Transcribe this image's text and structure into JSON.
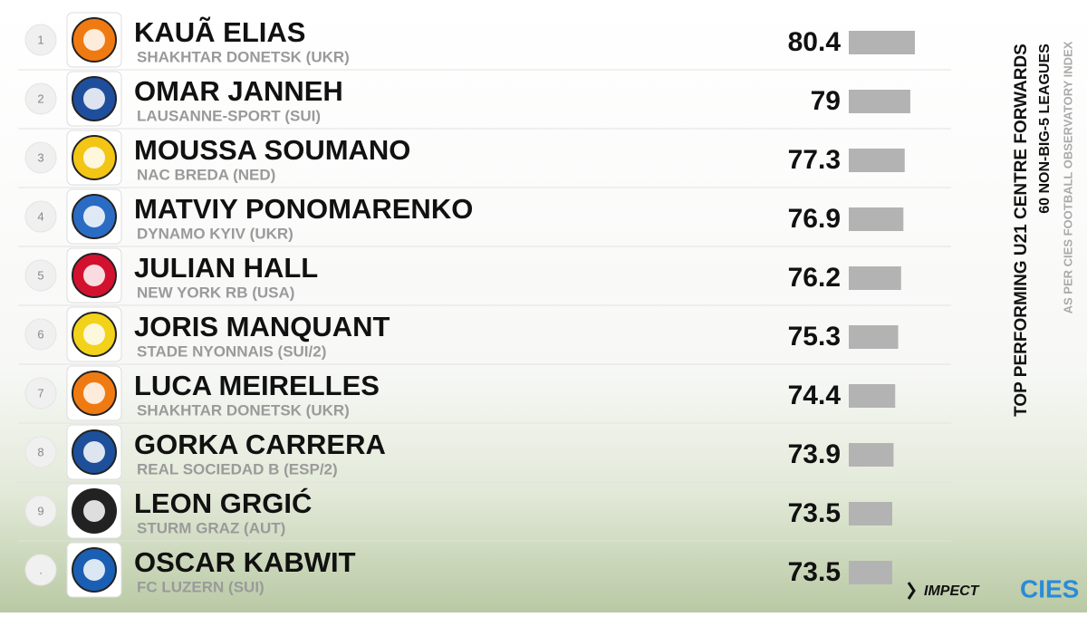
{
  "header": {
    "title": "TOP PERFORMING U21 CENTRE FORWARDS",
    "subtitle": "60 NON-BIG-5 LEAGUES",
    "source": "AS PER CIES FOOTBALL OBSERVATORY INDEX"
  },
  "footer": {
    "brand_1": "IMPECT",
    "brand_2": "CIES"
  },
  "rows": [
    {
      "rank": "1",
      "name": "KAUÃ ELIAS",
      "club": "SHAKHTAR DONETSK (UKR)",
      "value": 80.4,
      "logo_color": "#f07a12"
    },
    {
      "rank": "2",
      "name": "OMAR JANNEH",
      "club": "LAUSANNE-SPORT (SUI)",
      "value": 79.0,
      "logo_color": "#1f4e9c"
    },
    {
      "rank": "3",
      "name": "MOUSSA SOUMANO",
      "club": "NAC BREDA (NED)",
      "value": 77.3,
      "logo_color": "#f3c515"
    },
    {
      "rank": "4",
      "name": "MATVIY PONOMARENKO",
      "club": "DYNAMO KYIV (UKR)",
      "value": 76.9,
      "logo_color": "#2a6cc4"
    },
    {
      "rank": "5",
      "name": "JULIAN HALL",
      "club": "NEW YORK RB (USA)",
      "value": 76.2,
      "logo_color": "#d3112f"
    },
    {
      "rank": "6",
      "name": "JORIS MANQUANT",
      "club": "STADE NYONNAIS (SUI/2)",
      "value": 75.3,
      "logo_color": "#f2d21a"
    },
    {
      "rank": "7",
      "name": "LUCA MEIRELLES",
      "club": "SHAKHTAR DONETSK (UKR)",
      "value": 74.4,
      "logo_color": "#f07a12"
    },
    {
      "rank": "8",
      "name": "GORKA CARRERA",
      "club": "REAL SOCIEDAD B (ESP/2)",
      "value": 73.9,
      "logo_color": "#1d4f9a"
    },
    {
      "rank": "9",
      "name": "LEON GRGIĆ",
      "club": "STURM GRAZ (AUT)",
      "value": 73.5,
      "logo_color": "#222222"
    },
    {
      "rank": ".",
      "name": "OSCAR KABWIT",
      "club": "FC LUZERN (SUI)",
      "value": 73.5,
      "logo_color": "#1a5fb4"
    }
  ]
}
